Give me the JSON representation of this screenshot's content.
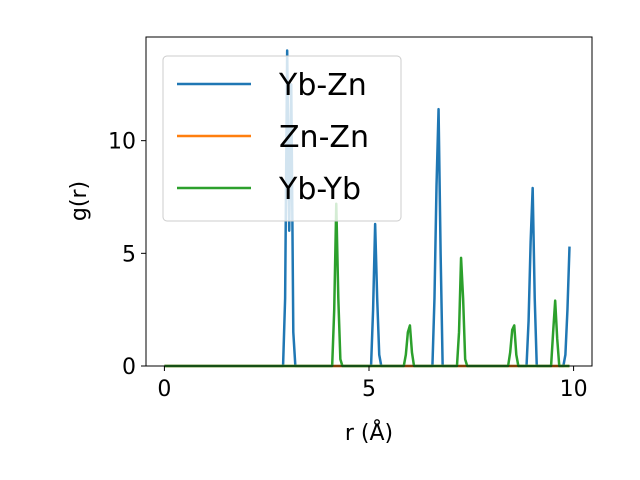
{
  "chart_data": {
    "type": "line",
    "xlabel": "r (Å)",
    "ylabel": "g(r)",
    "xlim": [
      -0.45,
      10.45
    ],
    "ylim": [
      0,
      14.6
    ],
    "xticks": [
      0,
      5,
      10
    ],
    "yticks": [
      0,
      5,
      10
    ],
    "grid": false,
    "legend_position": "top-left",
    "series": [
      {
        "name": "Yb-Zn",
        "color": "#1f77b4",
        "x": [
          0,
          2.9,
          2.95,
          3.0,
          3.05,
          3.1,
          3.15,
          3.2,
          5.05,
          5.1,
          5.15,
          5.2,
          5.25,
          5.3,
          6.55,
          6.6,
          6.65,
          6.7,
          6.75,
          6.8,
          8.85,
          8.9,
          8.95,
          9.0,
          9.05,
          9.1,
          9.75,
          9.8,
          9.85,
          9.9
        ],
        "y": [
          0,
          0,
          3.0,
          14.0,
          6.0,
          12.5,
          1.5,
          0,
          0,
          2.5,
          6.3,
          3.0,
          0.5,
          0,
          0,
          3.0,
          8.0,
          11.4,
          5.0,
          0,
          0,
          2.0,
          5.5,
          7.9,
          3.0,
          0,
          0,
          0.5,
          2.5,
          5.3
        ]
      },
      {
        "name": "Zn-Zn",
        "color": "#ff7f0e",
        "x": [
          0,
          9.9
        ],
        "y": [
          0,
          0
        ]
      },
      {
        "name": "Yb-Yb",
        "color": "#2ca02c",
        "x": [
          0,
          4.1,
          4.15,
          4.2,
          4.25,
          4.3,
          4.35,
          5.85,
          5.9,
          5.95,
          6.0,
          6.05,
          6.1,
          7.15,
          7.2,
          7.25,
          7.3,
          7.35,
          7.4,
          8.4,
          8.45,
          8.5,
          8.55,
          8.6,
          8.65,
          9.45,
          9.5,
          9.55,
          9.6,
          9.65,
          9.9
        ],
        "y": [
          0,
          0,
          2.5,
          7.2,
          3.0,
          0.3,
          0,
          0,
          0.5,
          1.5,
          1.8,
          0.6,
          0,
          0,
          1.5,
          4.8,
          3.0,
          0.3,
          0,
          0,
          0.6,
          1.6,
          1.8,
          0.5,
          0,
          0,
          1.5,
          2.9,
          1.2,
          0,
          0
        ]
      }
    ]
  }
}
